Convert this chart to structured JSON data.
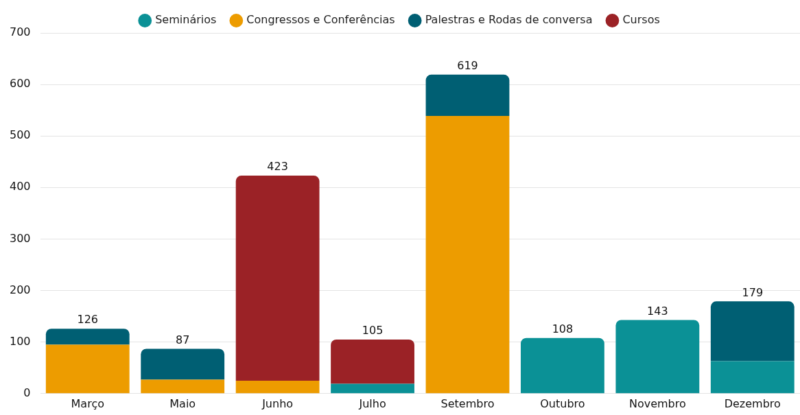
{
  "chart_data": {
    "type": "bar",
    "stacked": true,
    "categories": [
      "Março",
      "Maio",
      "Junho",
      "Julho",
      "Setembro",
      "Outubro",
      "Novembro",
      "Dezembro"
    ],
    "series": [
      {
        "name": "Seminários",
        "color": "#0b9196",
        "values": [
          null,
          null,
          null,
          19,
          null,
          108,
          143,
          63
        ]
      },
      {
        "name": "Congressos e Conferências",
        "color": "#ed9c00",
        "values": [
          95,
          27,
          25,
          null,
          539,
          null,
          null,
          null
        ]
      },
      {
        "name": "Palestras e Rodas de conversa",
        "color": "#005f73",
        "values": [
          31,
          60,
          null,
          null,
          80,
          null,
          null,
          116
        ]
      },
      {
        "name": "Cursos",
        "color": "#9b2226",
        "values": [
          null,
          null,
          398,
          86,
          null,
          null,
          null,
          null
        ]
      }
    ],
    "totals": [
      "126",
      "87",
      "423",
      "105",
      "619",
      "108",
      "143",
      "179"
    ],
    "ylim": [
      0,
      700
    ],
    "yticks": [
      0,
      100,
      200,
      300,
      400,
      500,
      600,
      700
    ],
    "grid": "y",
    "legend": "top"
  }
}
